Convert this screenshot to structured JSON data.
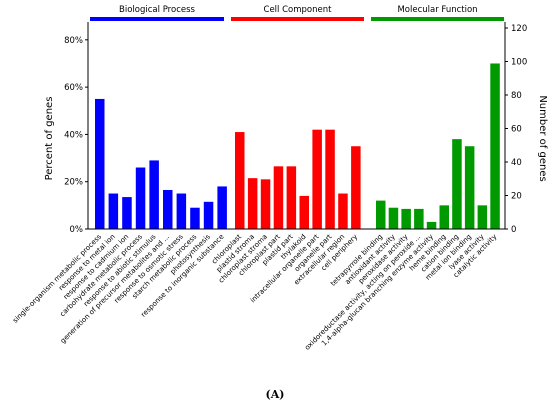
{
  "caption": "(A)",
  "chart_data": {
    "type": "bar",
    "ylabel_left": "Percent of genes",
    "ylabel_right": "Number of genes",
    "ylim_left": [
      0,
      85
    ],
    "ylim_right": [
      0,
      120
    ],
    "left_ticks": [
      "0%",
      "20%",
      "40%",
      "60%",
      "80%"
    ],
    "right_ticks": [
      "0",
      "20",
      "40",
      "60",
      "80",
      "100",
      "120"
    ],
    "groups": [
      {
        "name": "Biological Process",
        "color": "#0000ff",
        "categories": [
          "single-organism metabolic process",
          "response to metal ion",
          "response to cadmium ion",
          "carbohydrate metabolic process",
          "response to abiotic stimulus",
          "generation of precursor metabolites and ...",
          "response to osmotic stress",
          "starch metabolic process",
          "photosynthesis",
          "response to inorganic substance"
        ],
        "values": [
          55,
          15,
          13.5,
          26,
          29,
          16.5,
          15,
          9,
          11.5,
          18
        ]
      },
      {
        "name": "Cell Component",
        "color": "#ff0000",
        "categories": [
          "chloroplast",
          "plastid stroma",
          "chloroplast stroma",
          "chloroplast part",
          "plastid part",
          "thylakoid",
          "intracellular organelle part",
          "organelle part",
          "extracellular region",
          "cell periphery"
        ],
        "values": [
          41,
          21.5,
          21,
          26.5,
          26.5,
          14,
          42,
          42,
          15,
          35
        ]
      },
      {
        "name": "Molecular Function",
        "color": "#009900",
        "categories": [
          "tetrapyrrole binding",
          "antioxidant activity",
          "peroxidase activity",
          "oxidoreductase activity, acting on peroxide ...",
          "1,4-alpha-glucan branching enzyme activity",
          "heme binding",
          "cation binding",
          "metal ion binding",
          "lyase activity",
          "catalytic activity"
        ],
        "values": [
          12,
          9,
          8.5,
          8.5,
          3,
          10,
          38,
          35,
          10,
          70
        ]
      }
    ]
  }
}
